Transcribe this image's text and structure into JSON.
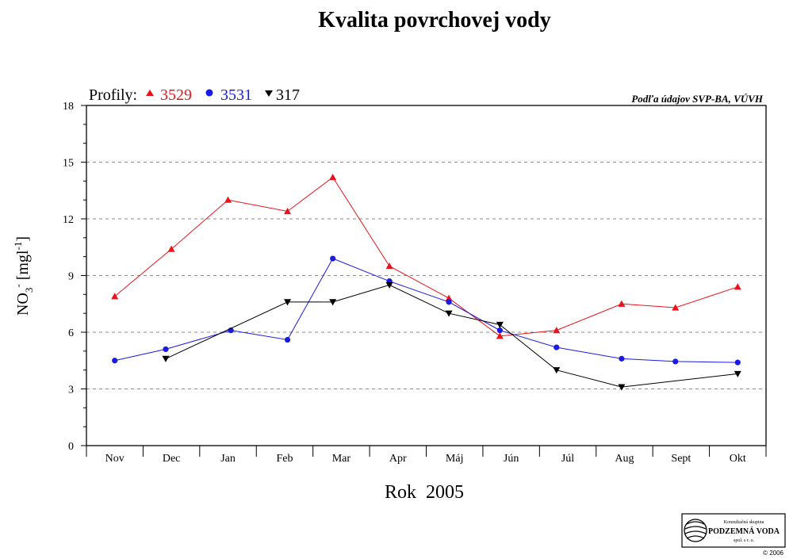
{
  "title": "Kvalita povrchovej vody",
  "legend": {
    "prefix": "Profily:",
    "items": [
      {
        "label": "3529",
        "color": "#e8141b",
        "marker": "triangle-up"
      },
      {
        "label": "3531",
        "color": "#1a1ae6",
        "marker": "circle"
      },
      {
        "label": "317",
        "color": "#000000",
        "marker": "triangle-down"
      }
    ]
  },
  "source_note": "Podľa údajov SVP-BA, VÚVH",
  "ylabel": {
    "main": "NO",
    "sub": "3",
    "sup": "-",
    "unit_open": "[mgl",
    "unit_sup": "-1",
    "unit_close": "]"
  },
  "xlabel": "Rok  2005",
  "logo": {
    "line1": "Konzultačná skupina",
    "line2": "PODZEMNÁ VODA",
    "line3": "spol. s r. o.",
    "copyright": "© 2006"
  },
  "chart_data": {
    "type": "line",
    "title": "Kvalita povrchovej vody",
    "xlabel": "Rok 2005",
    "ylabel": "NO3- [mgl-1]",
    "categories": [
      "Nov",
      "Dec",
      "Jan",
      "Feb",
      "Mar",
      "Apr",
      "Máj",
      "Jún",
      "Júl",
      "Aug",
      "Sept",
      "Okt"
    ],
    "ylim": [
      0,
      18
    ],
    "yticks": [
      0,
      3,
      6,
      9,
      12,
      15,
      18
    ],
    "grid": "horizontal dashed at 3,6,9,12,15",
    "legend_position": "top-left",
    "series": [
      {
        "name": "3529",
        "color": "#e8141b",
        "marker": "triangle-up",
        "points": [
          {
            "x": 0.0,
            "y": 7.9
          },
          {
            "x": 1.0,
            "y": 10.4
          },
          {
            "x": 2.0,
            "y": 13.0
          },
          {
            "x": 3.05,
            "y": 12.4
          },
          {
            "x": 3.85,
            "y": 14.2
          },
          {
            "x": 4.85,
            "y": 9.5
          },
          {
            "x": 5.9,
            "y": 7.8
          },
          {
            "x": 6.8,
            "y": 5.8
          },
          {
            "x": 7.8,
            "y": 6.1
          },
          {
            "x": 8.95,
            "y": 7.5
          },
          {
            "x": 9.9,
            "y": 7.3
          },
          {
            "x": 11.0,
            "y": 8.4
          }
        ]
      },
      {
        "name": "3531",
        "color": "#1a1ae6",
        "marker": "circle",
        "points": [
          {
            "x": 0.0,
            "y": 4.5
          },
          {
            "x": 0.9,
            "y": 5.1
          },
          {
            "x": 2.05,
            "y": 6.1
          },
          {
            "x": 3.05,
            "y": 5.6
          },
          {
            "x": 3.85,
            "y": 9.9
          },
          {
            "x": 4.85,
            "y": 8.7
          },
          {
            "x": 5.9,
            "y": 7.6
          },
          {
            "x": 6.8,
            "y": 6.1
          },
          {
            "x": 7.8,
            "y": 5.2
          },
          {
            "x": 8.95,
            "y": 4.6
          },
          {
            "x": 9.9,
            "y": 4.45
          },
          {
            "x": 11.0,
            "y": 4.4
          }
        ]
      },
      {
        "name": "317",
        "color": "#000000",
        "marker": "triangle-down",
        "points": [
          {
            "x": 0.9,
            "y": 4.6
          },
          {
            "x": 3.05,
            "y": 7.6
          },
          {
            "x": 3.85,
            "y": 7.6
          },
          {
            "x": 4.85,
            "y": 8.5
          },
          {
            "x": 5.9,
            "y": 7.0
          },
          {
            "x": 6.8,
            "y": 6.4
          },
          {
            "x": 7.8,
            "y": 4.0
          },
          {
            "x": 8.95,
            "y": 3.1
          },
          {
            "x": 11.0,
            "y": 3.8
          }
        ]
      }
    ]
  }
}
